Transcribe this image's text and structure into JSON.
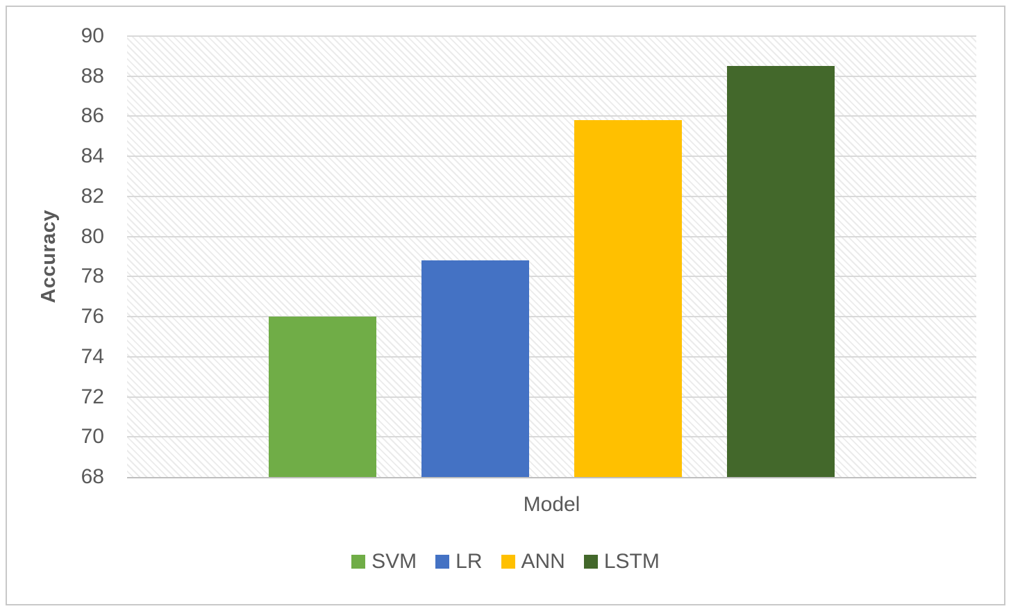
{
  "chart_data": {
    "type": "bar",
    "title": "",
    "xlabel": "Model",
    "ylabel": "Accuracy",
    "categories": [
      "SVM",
      "LR",
      "ANN",
      "LSTM"
    ],
    "values": [
      76,
      78.8,
      85.8,
      88.5
    ],
    "bar_colors": [
      "#70AD47",
      "#4472C4",
      "#FFC000",
      "#43682B"
    ],
    "ylim": [
      68,
      90
    ],
    "ytick_step": 2,
    "ytick_labels": [
      "68",
      "70",
      "72",
      "74",
      "76",
      "78",
      "80",
      "82",
      "84",
      "86",
      "88",
      "90"
    ],
    "grid": "horizontal",
    "plot_background": "diagonal-hatch",
    "legend": {
      "position": "bottom",
      "entries": [
        {
          "label": "SVM",
          "color": "#70AD47"
        },
        {
          "label": "LR",
          "color": "#4472C4"
        },
        {
          "label": "ANN",
          "color": "#FFC000"
        },
        {
          "label": "LSTM",
          "color": "#43682B"
        }
      ]
    }
  },
  "style": {
    "text_color": "#595959",
    "gridline_color": "#D9D9D9",
    "axis_line_color": "#BFBFBF",
    "hatch_color": "#EBEBEB",
    "frame_border_color": "#C8C8C8",
    "background": "#FFFFFF"
  }
}
